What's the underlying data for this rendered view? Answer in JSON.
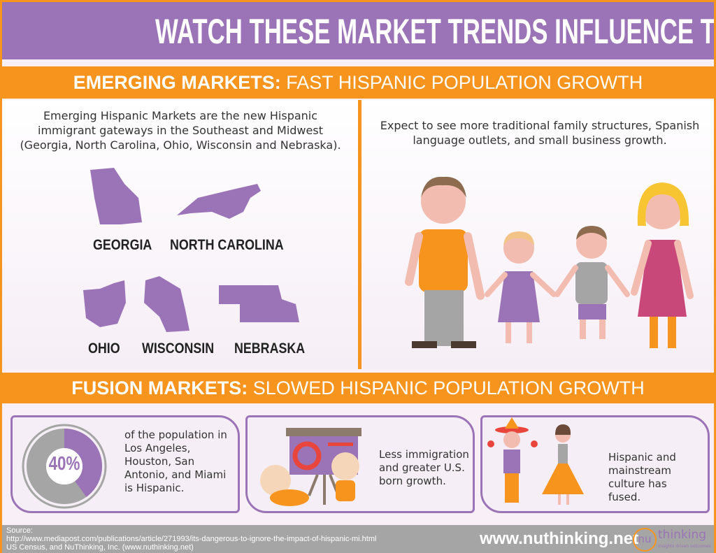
{
  "title": "WATCH THESE MARKET TRENDS INFLUENCE THE FUTURE",
  "emerging": {
    "heading_bold": "EMERGING MARKETS:",
    "heading_light": " FAST HISPANIC POPULATION GROWTH",
    "left_text": "Emerging Hispanic Markets are the new Hispanic immigrant gateways in the Southeast and Midwest (Georgia, North Carolina, Ohio, Wisconsin and Nebraska).",
    "states": [
      "GEORGIA",
      "NORTH CAROLINA",
      "OHIO",
      "WISCONSIN",
      "NEBRASKA"
    ],
    "right_text": "Expect to see more traditional family structures, Spanish language outlets, and small business growth."
  },
  "fusion": {
    "heading_bold": "FUSION MARKETS:",
    "heading_light": " SLOWED HISPANIC POPULATION GROWTH",
    "stat_value": "40%",
    "stat_percent": 40,
    "stat_text": "of the population in Los Angeles, Houston, San Antonio, and Miami is Hispanic.",
    "card2_text": "Less immigration and greater U.S. born growth.",
    "card3_text": "Hispanic and mainstream culture has fused."
  },
  "footer": {
    "source_label": "Source:",
    "source_url": "http://www.mediapost.com/publications/article/271993/its-dangerous-to-ignore-the-impact-of-hispanic-mi.html",
    "source_other": "US Census, and NuThinking, Inc. (www.nuthinking.net)",
    "site": "www.nuthinking.net",
    "logo_nu": "nu",
    "logo_thinking": "thinking",
    "logo_tagline": "insights driven outcomes"
  },
  "colors": {
    "purple": "#9b74b7",
    "orange": "#f7941d",
    "gray": "#a5a5a5"
  }
}
